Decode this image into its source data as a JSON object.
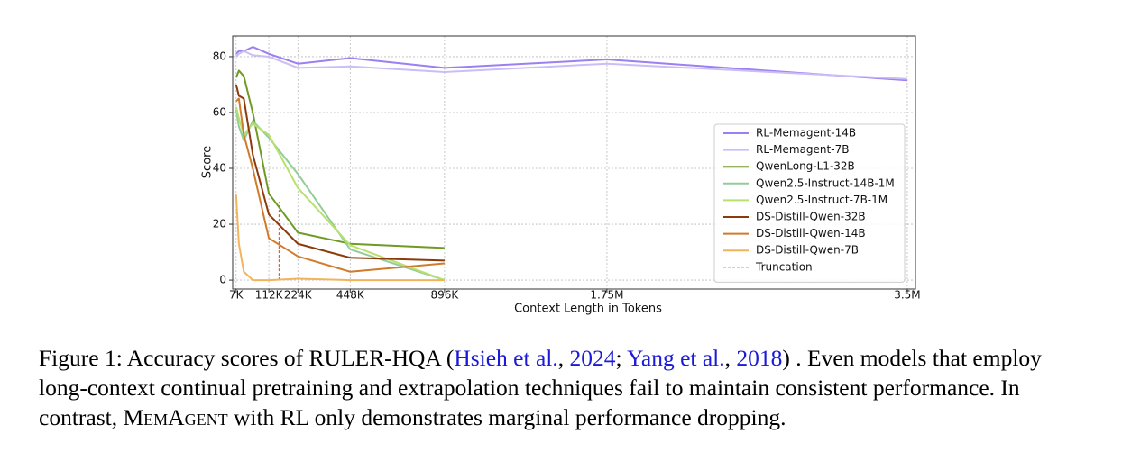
{
  "chart_data": {
    "type": "line",
    "xlabel": "Context Length in Tokens",
    "ylabel": "Score",
    "x": [
      7000,
      14000,
      28000,
      56000,
      112000,
      224000,
      448000,
      896000,
      1750000,
      3500000
    ],
    "xlim": [
      0,
      3550000
    ],
    "xticks": [
      {
        "value": 7000,
        "label": "7K"
      },
      {
        "value": 112000,
        "label": "112K"
      },
      {
        "value": 224000,
        "label": "224K"
      },
      {
        "value": 448000,
        "label": "448K"
      },
      {
        "value": 896000,
        "label": "896K"
      },
      {
        "value": 1750000,
        "label": "1.75M"
      },
      {
        "value": 3500000,
        "label": "3.5M"
      }
    ],
    "ylim": [
      -3.2,
      87.4
    ],
    "yticks": [
      0,
      20,
      40,
      60,
      80
    ],
    "grid": true,
    "legend": "right",
    "series": [
      {
        "name": "RL-Memagent-14B",
        "color": "#9c7ff0",
        "values": [
          81,
          82,
          82,
          83.5,
          81,
          77.5,
          79.5,
          76,
          79,
          71.5
        ]
      },
      {
        "name": "RL-Memagent-7B",
        "color": "#cbbdf6",
        "values": [
          80,
          81,
          82,
          80.5,
          80,
          76,
          76.5,
          74.5,
          77.5,
          72
        ]
      },
      {
        "name": "QwenLong-L1-32B",
        "color": "#6f9a25",
        "values": [
          72.5,
          75,
          73,
          60,
          31,
          17,
          13,
          11.5,
          null,
          null
        ]
      },
      {
        "name": "Qwen2.5-Instruct-14B-1M",
        "color": "#92cc98",
        "values": [
          61,
          55,
          50,
          57,
          51,
          38,
          11,
          0,
          null,
          null
        ]
      },
      {
        "name": "Qwen2.5-Instruct-7B-1M",
        "color": "#b8e06c",
        "values": [
          62,
          58,
          52,
          56,
          52,
          33,
          12.5,
          0,
          null,
          null
        ]
      },
      {
        "name": "DS-Distill-Qwen-32B",
        "color": "#8b3b0b",
        "values": [
          70,
          66,
          65,
          45,
          23.5,
          13,
          8,
          7,
          null,
          null
        ]
      },
      {
        "name": "DS-Distill-Qwen-14B",
        "color": "#d07b2b",
        "values": [
          64,
          65,
          52,
          40,
          15,
          8.5,
          3,
          6,
          null,
          null
        ]
      },
      {
        "name": "DS-Distill-Qwen-7B",
        "color": "#f2b45b",
        "values": [
          30.5,
          13,
          3,
          0,
          0,
          0.5,
          0,
          0,
          null,
          null
        ]
      }
    ],
    "truncation": {
      "label": "Truncation",
      "x": 150000,
      "y": 28,
      "color": "#e05555"
    }
  },
  "caption": {
    "segments": [
      "Figure 1: Accuracy scores of RULER-HQA (",
      "Hsieh et al.",
      ", ",
      "2024",
      "; ",
      "Yang et al.",
      ", ",
      "2018",
      ") . Even models that employ long-context continual pretraining and extrapolation techniques fail to maintain consistent performance. In contrast, ",
      "MemAgent",
      " with RL only demonstrates marginal performance dropping."
    ]
  }
}
